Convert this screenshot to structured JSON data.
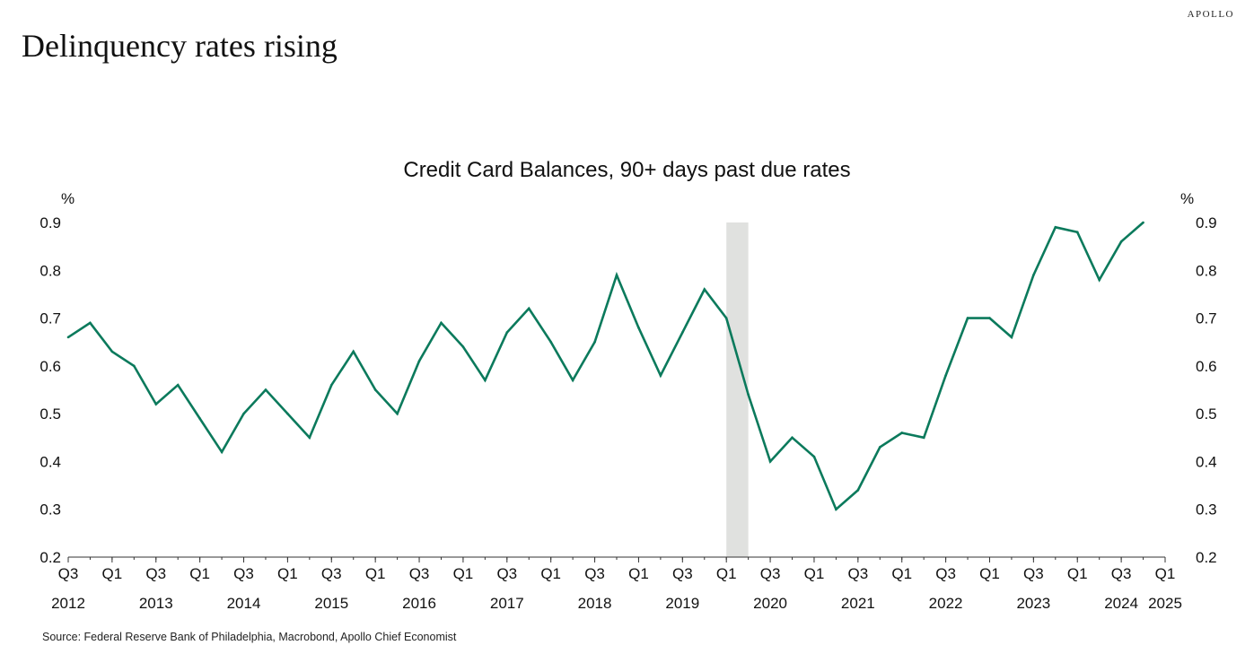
{
  "brand": "APOLLO",
  "page_title": "Delinquency rates rising",
  "source": "Source: Federal Reserve Bank of Philadelphia, Macrobond, Apollo Chief Economist",
  "colors": {
    "line": "#0b7a5c",
    "recession": "#e0e1df",
    "axis": "#333333"
  },
  "chart_data": {
    "type": "line",
    "title": "Credit Card Balances, 90+ days past due rates",
    "ylabel_left": "%",
    "ylabel_right": "%",
    "ylim": [
      0.2,
      0.9
    ],
    "yticks": [
      0.2,
      0.3,
      0.4,
      0.5,
      0.6,
      0.7,
      0.8,
      0.9
    ],
    "ytick_labels": [
      "0.2",
      "0.3",
      "0.4",
      "0.5",
      "0.6",
      "0.7",
      "0.8",
      "0.9"
    ],
    "xlim": [
      "2012-Q3",
      "2025-Q1"
    ],
    "xticks": [
      {
        "q": "2012-Q3",
        "label": "Q3",
        "year": "2012"
      },
      {
        "q": "2013-Q1",
        "label": "Q1",
        "year": ""
      },
      {
        "q": "2013-Q3",
        "label": "Q3",
        "year": "2013"
      },
      {
        "q": "2014-Q1",
        "label": "Q1",
        "year": ""
      },
      {
        "q": "2014-Q3",
        "label": "Q3",
        "year": "2014"
      },
      {
        "q": "2015-Q1",
        "label": "Q1",
        "year": ""
      },
      {
        "q": "2015-Q3",
        "label": "Q3",
        "year": "2015"
      },
      {
        "q": "2016-Q1",
        "label": "Q1",
        "year": ""
      },
      {
        "q": "2016-Q3",
        "label": "Q3",
        "year": "2016"
      },
      {
        "q": "2017-Q1",
        "label": "Q1",
        "year": ""
      },
      {
        "q": "2017-Q3",
        "label": "Q3",
        "year": "2017"
      },
      {
        "q": "2018-Q1",
        "label": "Q1",
        "year": ""
      },
      {
        "q": "2018-Q3",
        "label": "Q3",
        "year": "2018"
      },
      {
        "q": "2019-Q1",
        "label": "Q1",
        "year": ""
      },
      {
        "q": "2019-Q3",
        "label": "Q3",
        "year": "2019"
      },
      {
        "q": "2020-Q1",
        "label": "Q1",
        "year": ""
      },
      {
        "q": "2020-Q3",
        "label": "Q3",
        "year": "2020"
      },
      {
        "q": "2021-Q1",
        "label": "Q1",
        "year": ""
      },
      {
        "q": "2021-Q3",
        "label": "Q3",
        "year": "2021"
      },
      {
        "q": "2022-Q1",
        "label": "Q1",
        "year": ""
      },
      {
        "q": "2022-Q3",
        "label": "Q3",
        "year": "2022"
      },
      {
        "q": "2023-Q1",
        "label": "Q1",
        "year": ""
      },
      {
        "q": "2023-Q3",
        "label": "Q3",
        "year": "2023"
      },
      {
        "q": "2024-Q1",
        "label": "Q1",
        "year": ""
      },
      {
        "q": "2024-Q3",
        "label": "Q3",
        "year": "2024"
      },
      {
        "q": "2025-Q1",
        "label": "Q1",
        "year": "2025"
      }
    ],
    "recession": [
      "2020-Q1",
      "2020-Q2"
    ],
    "series": [
      {
        "x": [
          "2012-Q3",
          "2012-Q4",
          "2013-Q1",
          "2013-Q2",
          "2013-Q3",
          "2013-Q4",
          "2014-Q1",
          "2014-Q2",
          "2014-Q3",
          "2014-Q4",
          "2015-Q1",
          "2015-Q2",
          "2015-Q3",
          "2015-Q4",
          "2016-Q1",
          "2016-Q2",
          "2016-Q3",
          "2016-Q4",
          "2017-Q1",
          "2017-Q2",
          "2017-Q3",
          "2017-Q4",
          "2018-Q1",
          "2018-Q2",
          "2018-Q3",
          "2018-Q4",
          "2019-Q1",
          "2019-Q2",
          "2019-Q3",
          "2019-Q4",
          "2020-Q1",
          "2020-Q2",
          "2020-Q3",
          "2020-Q4",
          "2021-Q1",
          "2021-Q2",
          "2021-Q3",
          "2021-Q4",
          "2022-Q1",
          "2022-Q2",
          "2022-Q3",
          "2022-Q4",
          "2023-Q1",
          "2023-Q2",
          "2023-Q3",
          "2023-Q4",
          "2024-Q1",
          "2024-Q2",
          "2024-Q3",
          "2024-Q4"
        ],
        "values": [
          0.66,
          0.69,
          0.63,
          0.6,
          0.52,
          0.56,
          0.49,
          0.42,
          0.5,
          0.55,
          0.5,
          0.45,
          0.56,
          0.63,
          0.55,
          0.5,
          0.61,
          0.69,
          0.64,
          0.57,
          0.67,
          0.72,
          0.65,
          0.57,
          0.65,
          0.79,
          0.68,
          0.58,
          0.67,
          0.76,
          0.7,
          0.54,
          0.4,
          0.45,
          0.41,
          0.3,
          0.34,
          0.43,
          0.46,
          0.45,
          0.58,
          0.7,
          0.7,
          0.66,
          0.79,
          0.89,
          0.88,
          0.78,
          0.86,
          0.9
        ]
      }
    ]
  }
}
